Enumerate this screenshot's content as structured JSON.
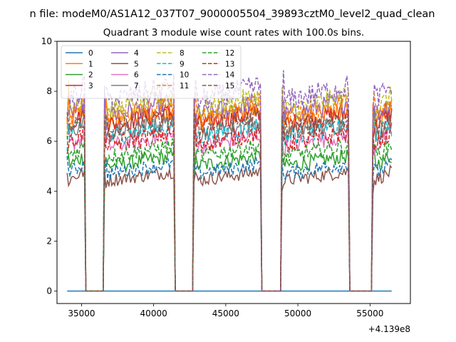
{
  "figure": {
    "suptitle": "n file: modeM0/AS1A12_037T07_9000005504_39893cztM0_level2_quad_clean"
  },
  "chart_data": {
    "type": "line",
    "title": "Quadrant 3 module wise count rates with 100.0s bins.",
    "xlabel": "",
    "ylabel": "",
    "x_offset_text": "+4.139e8",
    "xlim": [
      33300,
      57800
    ],
    "ylim": [
      -0.5,
      10
    ],
    "xticks": [
      35000,
      40000,
      45000,
      50000,
      55000
    ],
    "xtick_labels": [
      "35000",
      "40000",
      "45000",
      "50000",
      "55000"
    ],
    "yticks": [
      0,
      2,
      4,
      6,
      8,
      10
    ],
    "ytick_labels": [
      "0",
      "2",
      "4",
      "6",
      "8",
      "10"
    ],
    "grid": false,
    "legend_placement": "top-left",
    "legend_columns": 4,
    "x_range": [
      34000,
      56500
    ],
    "bin_width_s": 100,
    "active_intervals": [
      [
        34000,
        35200
      ],
      [
        36600,
        41400
      ],
      [
        42800,
        47400
      ],
      [
        48900,
        53500
      ],
      [
        55200,
        56500
      ]
    ],
    "series": [
      {
        "name": "0",
        "color": "#1f77b4",
        "dash": "solid",
        "level": 0.0
      },
      {
        "name": "1",
        "color": "#ff7f0e",
        "dash": "solid",
        "level": 7.0
      },
      {
        "name": "2",
        "color": "#2ca02c",
        "dash": "solid",
        "level": 5.2
      },
      {
        "name": "3",
        "color": "#d62728",
        "dash": "solid",
        "level": 6.9
      },
      {
        "name": "4",
        "color": "#9467bd",
        "dash": "solid",
        "level": 7.3
      },
      {
        "name": "5",
        "color": "#8c564b",
        "dash": "solid",
        "level": 4.6
      },
      {
        "name": "6",
        "color": "#e377c2",
        "dash": "solid",
        "level": 6.0
      },
      {
        "name": "7",
        "color": "#7f7f7f",
        "dash": "solid",
        "level": 6.5
      },
      {
        "name": "8",
        "color": "#bcbd22",
        "dash": "dashed",
        "level": 7.5
      },
      {
        "name": "9",
        "color": "#17becf",
        "dash": "dashed",
        "level": 6.4
      },
      {
        "name": "10",
        "color": "#1f77b4",
        "dash": "dashed",
        "level": 4.9
      },
      {
        "name": "11",
        "color": "#ff7f0e",
        "dash": "dashed",
        "level": 7.2
      },
      {
        "name": "12",
        "color": "#2ca02c",
        "dash": "dashed",
        "level": 5.6
      },
      {
        "name": "13",
        "color": "#d62728",
        "dash": "dashed",
        "level": 6.1
      },
      {
        "name": "14",
        "color": "#9467bd",
        "dash": "dashed",
        "level": 7.9
      },
      {
        "name": "15",
        "color": "#8c564b",
        "dash": "dashed",
        "level": 6.7
      }
    ]
  }
}
